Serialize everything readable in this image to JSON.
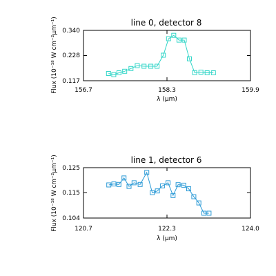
{
  "chart_data": [
    {
      "type": "line",
      "title": "line 0, detector 8",
      "xlabel": "λ (μm)",
      "ylabel": "Flux (10⁻¹⁸ W cm⁻²μm⁻¹)",
      "xlim": [
        156.7,
        159.9
      ],
      "ylim": [
        0.117,
        0.34
      ],
      "xticks": [
        "156.7",
        "158.3",
        "159.9"
      ],
      "yticks": [
        "0.340",
        "0.228",
        "0.117"
      ],
      "color": "#33d6c8",
      "marker": "square",
      "grid": false,
      "x": [
        157.18,
        157.28,
        157.38,
        157.49,
        157.61,
        157.73,
        157.86,
        157.99,
        158.11,
        158.23,
        158.33,
        158.43,
        158.53,
        158.63,
        158.73,
        158.83,
        158.95,
        159.07,
        159.19
      ],
      "y": [
        0.149,
        0.144,
        0.152,
        0.159,
        0.171,
        0.184,
        0.181,
        0.181,
        0.181,
        0.23,
        0.303,
        0.318,
        0.297,
        0.297,
        0.214,
        0.153,
        0.155,
        0.152,
        0.152
      ]
    },
    {
      "type": "line",
      "title": "line 1, detector 6",
      "xlabel": "λ (μm)",
      "ylabel": "Flux (10⁻¹⁸ W cm⁻²μm⁻¹)",
      "xlim": [
        120.7,
        124.0
      ],
      "ylim": [
        0.104,
        0.125
      ],
      "xticks": [
        "120.7",
        "122.3",
        "124.0"
      ],
      "yticks": [
        "0.125",
        "0.115",
        "0.104"
      ],
      "color": "#2b9ad6",
      "marker": "square",
      "grid": false,
      "x": [
        121.2,
        121.3,
        121.4,
        121.5,
        121.6,
        121.7,
        121.82,
        121.95,
        122.06,
        122.16,
        122.26,
        122.37,
        122.47,
        122.57,
        122.68,
        122.78,
        122.88,
        122.98,
        123.08,
        123.18
      ],
      "y": [
        0.1178,
        0.1182,
        0.118,
        0.1207,
        0.1172,
        0.1187,
        0.118,
        0.123,
        0.1146,
        0.1153,
        0.1174,
        0.1187,
        0.1134,
        0.1179,
        0.1177,
        0.1162,
        0.1129,
        0.1103,
        0.106,
        0.106
      ]
    }
  ]
}
